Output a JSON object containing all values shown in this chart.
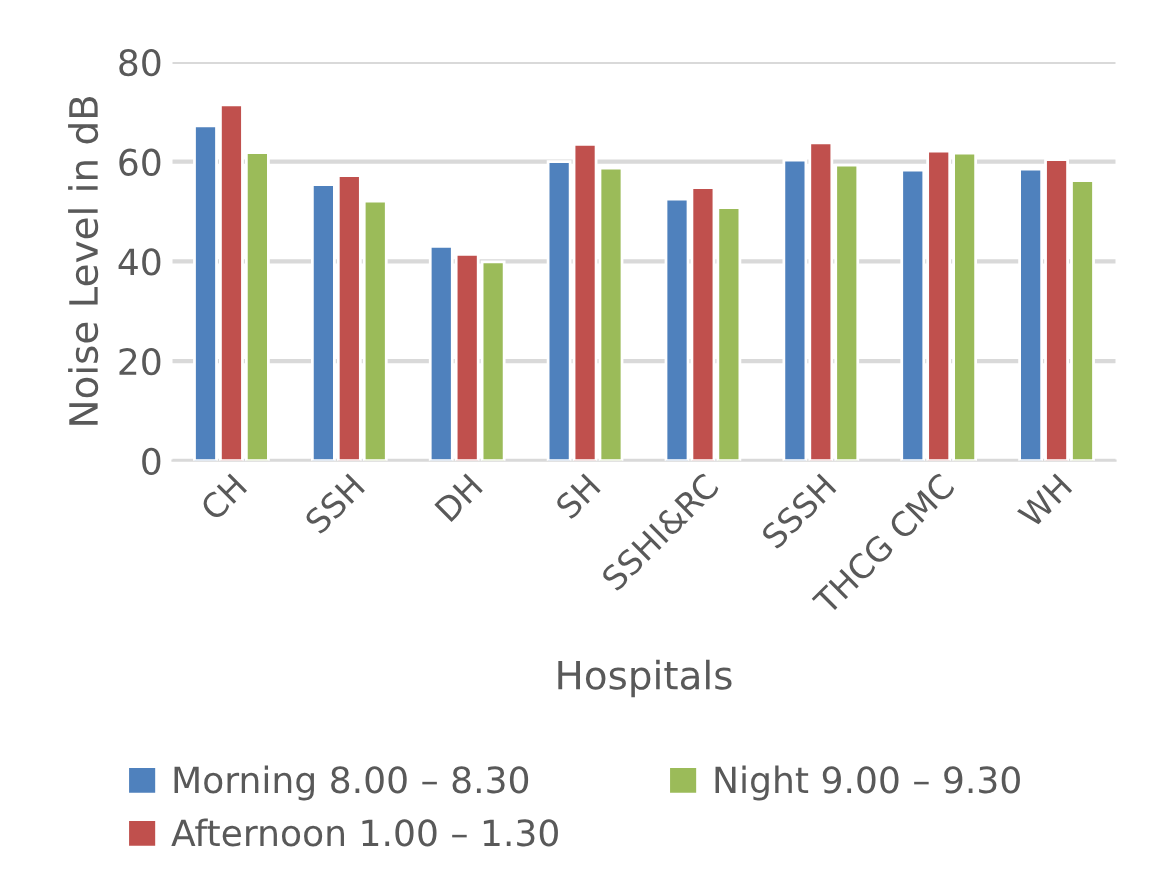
{
  "chart_data": {
    "type": "bar",
    "xlabel": "Hospitals",
    "ylabel": "Noise Level in dB",
    "categories": [
      "CH",
      "SSH",
      "DH",
      "SH",
      "SSHI&RC",
      "SSSH",
      "THCG CMC",
      "WH"
    ],
    "series": [
      {
        "name": "Morning 8.00 – 8.30",
        "color": "#4f81bd",
        "values": [
          67.2,
          55.4,
          43.0,
          60.0,
          52.5,
          60.3,
          58.3,
          58.5
        ]
      },
      {
        "name": "Afternoon 1.00 – 1.30",
        "color": "#c0504d",
        "values": [
          71.4,
          57.2,
          41.4,
          63.5,
          54.8,
          63.8,
          62.1,
          60.4
        ]
      },
      {
        "name": "Night 9.00 – 9.30",
        "color": "#9bbb59",
        "values": [
          61.8,
          52.1,
          39.9,
          58.7,
          50.8,
          59.3,
          61.7,
          56.2
        ]
      }
    ],
    "ylim": [
      0,
      80
    ],
    "yticks": [
      0,
      20,
      40,
      60,
      80
    ],
    "grid": "y",
    "legend": "bottom"
  }
}
